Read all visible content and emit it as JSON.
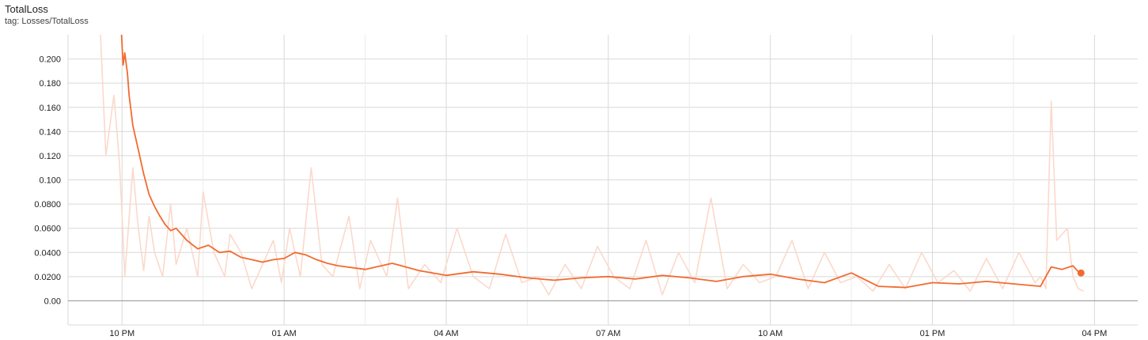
{
  "header": {
    "title": "TotalLoss",
    "subtitle": "tag: Losses/TotalLoss"
  },
  "colors": {
    "smoothed": "#f26a2f",
    "raw": "#fbd9cb",
    "grid": "#d9d9d9",
    "axis": "#9e9e9e"
  },
  "chart_data": {
    "type": "line",
    "title": "TotalLoss",
    "subtitle": "tag: Losses/TotalLoss",
    "x_axis": {
      "type": "time",
      "unit": "hours since 21:00",
      "range": [
        0,
        19.8
      ],
      "tick_labels": [
        "10 PM",
        "01 AM",
        "04 AM",
        "07 AM",
        "10 AM",
        "01 PM",
        "04 PM"
      ],
      "tick_positions": [
        1,
        4,
        7,
        10,
        13,
        16,
        19
      ]
    },
    "y_axis": {
      "range": [
        -0.02,
        0.22
      ],
      "tick_labels": [
        "0.00",
        "0.0200",
        "0.0400",
        "0.0600",
        "0.0800",
        "0.100",
        "0.120",
        "0.140",
        "0.160",
        "0.180",
        "0.200"
      ],
      "tick_values": [
        0,
        0.02,
        0.04,
        0.06,
        0.08,
        0.1,
        0.12,
        0.14,
        0.16,
        0.18,
        0.2
      ]
    },
    "grid": true,
    "series": [
      {
        "role": "smoothed",
        "x": [
          0.99,
          1.02,
          1.05,
          1.08,
          1.1,
          1.13,
          1.2,
          1.3,
          1.4,
          1.5,
          1.6,
          1.7,
          1.8,
          1.9,
          2.0,
          2.2,
          2.4,
          2.6,
          2.8,
          3.0,
          3.2,
          3.4,
          3.6,
          3.8,
          4.0,
          4.2,
          4.4,
          4.6,
          4.8,
          5.0,
          5.5,
          6.0,
          6.5,
          7.0,
          7.5,
          8.0,
          8.5,
          9.0,
          9.5,
          10.0,
          10.5,
          11.0,
          11.5,
          12.0,
          12.5,
          13.0,
          13.5,
          14.0,
          14.5,
          15.0,
          15.5,
          16.0,
          16.5,
          17.0,
          17.5,
          18.0,
          18.2,
          18.4,
          18.6,
          18.7
        ],
        "y": [
          0.22,
          0.195,
          0.205,
          0.195,
          0.188,
          0.17,
          0.145,
          0.125,
          0.105,
          0.088,
          0.078,
          0.07,
          0.063,
          0.058,
          0.06,
          0.05,
          0.043,
          0.046,
          0.04,
          0.041,
          0.036,
          0.034,
          0.032,
          0.034,
          0.035,
          0.04,
          0.038,
          0.034,
          0.031,
          0.029,
          0.026,
          0.031,
          0.025,
          0.021,
          0.024,
          0.022,
          0.019,
          0.017,
          0.019,
          0.02,
          0.018,
          0.021,
          0.019,
          0.016,
          0.02,
          0.022,
          0.018,
          0.015,
          0.023,
          0.012,
          0.011,
          0.015,
          0.014,
          0.016,
          0.014,
          0.012,
          0.028,
          0.026,
          0.029,
          0.024
        ],
        "last_point": [
          18.75,
          0.023
        ]
      },
      {
        "role": "raw",
        "x": [
          0.6,
          0.7,
          0.85,
          0.95,
          1.0,
          1.05,
          1.2,
          1.3,
          1.4,
          1.5,
          1.6,
          1.75,
          1.9,
          2.0,
          2.2,
          2.4,
          2.5,
          2.7,
          2.9,
          3.0,
          3.2,
          3.4,
          3.6,
          3.8,
          3.95,
          4.1,
          4.3,
          4.5,
          4.7,
          4.9,
          5.2,
          5.4,
          5.6,
          5.9,
          6.1,
          6.3,
          6.6,
          6.9,
          7.2,
          7.5,
          7.8,
          8.1,
          8.4,
          8.7,
          8.9,
          9.2,
          9.5,
          9.8,
          10.1,
          10.4,
          10.7,
          11.0,
          11.3,
          11.6,
          11.9,
          12.2,
          12.5,
          12.8,
          13.1,
          13.4,
          13.7,
          14.0,
          14.3,
          14.6,
          14.9,
          15.2,
          15.5,
          15.8,
          16.1,
          16.4,
          16.7,
          17.0,
          17.3,
          17.6,
          17.9,
          18.0,
          18.1,
          18.2,
          18.3,
          18.5,
          18.6,
          18.7,
          18.8
        ],
        "y": [
          0.22,
          0.12,
          0.17,
          0.115,
          0.07,
          0.02,
          0.11,
          0.06,
          0.025,
          0.07,
          0.04,
          0.02,
          0.08,
          0.03,
          0.06,
          0.02,
          0.09,
          0.04,
          0.02,
          0.055,
          0.04,
          0.01,
          0.03,
          0.05,
          0.015,
          0.06,
          0.02,
          0.11,
          0.03,
          0.02,
          0.07,
          0.01,
          0.05,
          0.02,
          0.085,
          0.01,
          0.03,
          0.015,
          0.06,
          0.02,
          0.01,
          0.055,
          0.015,
          0.02,
          0.005,
          0.03,
          0.01,
          0.045,
          0.02,
          0.01,
          0.05,
          0.005,
          0.04,
          0.015,
          0.085,
          0.01,
          0.03,
          0.015,
          0.02,
          0.05,
          0.01,
          0.04,
          0.015,
          0.02,
          0.008,
          0.03,
          0.01,
          0.04,
          0.015,
          0.025,
          0.008,
          0.035,
          0.01,
          0.04,
          0.015,
          0.02,
          0.01,
          0.165,
          0.05,
          0.06,
          0.02,
          0.01,
          0.008
        ]
      }
    ]
  }
}
